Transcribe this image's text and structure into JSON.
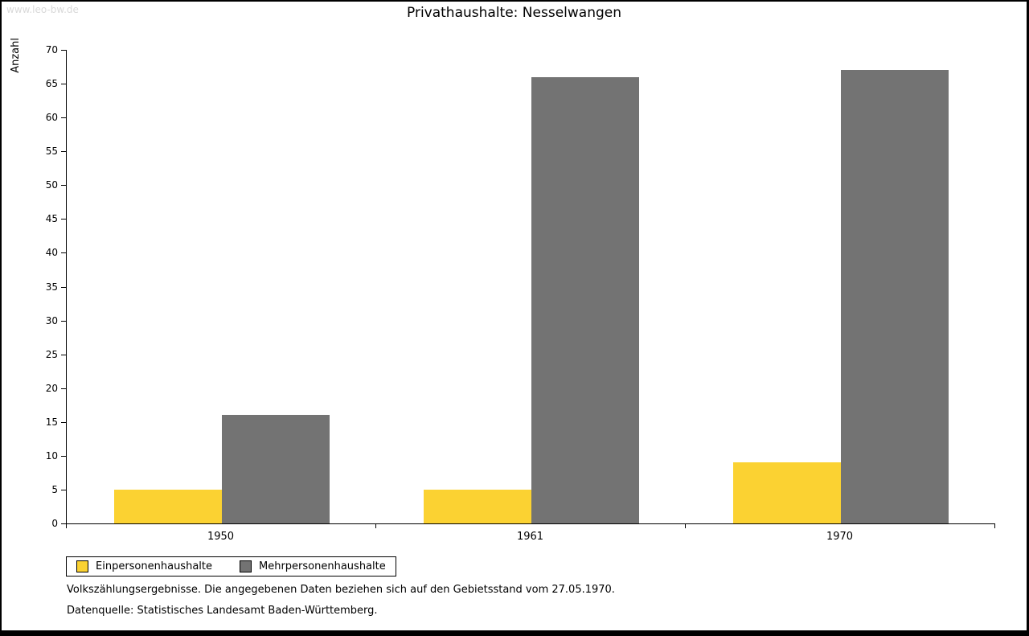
{
  "watermark": "www.leo-bw.de",
  "title": "Privathaushalte: Nesselwangen",
  "chart_data": {
    "type": "bar",
    "title": "Privathaushalte: Nesselwangen",
    "categories": [
      "1950",
      "1961",
      "1970"
    ],
    "series": [
      {
        "name": "Einpersonenhaushalte",
        "color": "#fbd232",
        "values": [
          5,
          5,
          9
        ]
      },
      {
        "name": "Mehrpersonenhaushalte",
        "color": "#737373",
        "values": [
          16,
          66,
          67
        ]
      }
    ],
    "xlabel": "",
    "ylabel": "Anzahl",
    "ylim": [
      0,
      70
    ],
    "ytick_step": 5,
    "grid": false,
    "legend_position": "bottom-left"
  },
  "footnotes": [
    "Volkszählungsergebnisse. Die angegebenen Daten beziehen sich auf den Gebietsstand vom 27.05.1970.",
    "Datenquelle: Statistisches Landesamt Baden-Württemberg."
  ]
}
